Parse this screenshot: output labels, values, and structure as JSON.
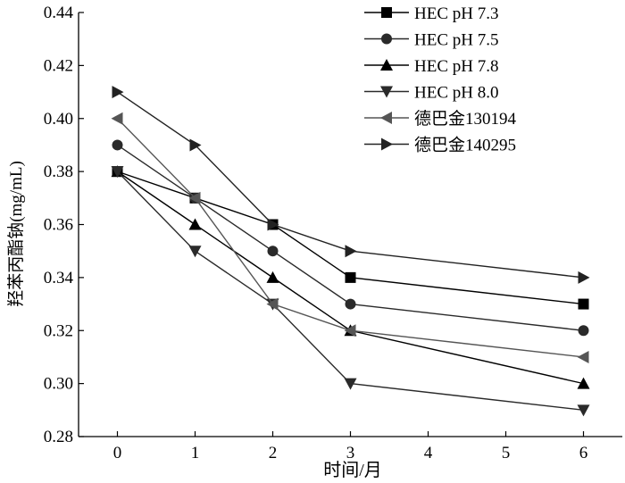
{
  "chart_data": {
    "type": "line",
    "title": "",
    "xlabel": "时间/月",
    "ylabel": "羟苯丙酯钠(mg/mL)",
    "xlim": [
      -0.5,
      6.5
    ],
    "ylim": [
      0.28,
      0.44
    ],
    "x_ticks": [
      0,
      1,
      2,
      3,
      4,
      5,
      6
    ],
    "y_ticks": [
      0.28,
      0.3,
      0.32,
      0.34,
      0.36,
      0.38,
      0.4,
      0.42,
      0.44
    ],
    "x_tick_labels": [
      "0",
      "1",
      "2",
      "3",
      "4",
      "5",
      "6"
    ],
    "y_tick_labels": [
      "0.28",
      "0.30",
      "0.32",
      "0.34",
      "0.36",
      "0.38",
      "0.40",
      "0.42",
      "0.44"
    ],
    "grid": false,
    "legend_position": "top-right",
    "x": [
      0,
      1,
      2,
      3,
      6
    ],
    "series": [
      {
        "name": "HEC pH 7.3",
        "marker": "square",
        "color": "#000000",
        "values": [
          0.38,
          0.37,
          0.36,
          0.34,
          0.33
        ]
      },
      {
        "name": "HEC pH 7.5",
        "marker": "circle",
        "color": "#2a2a2a",
        "values": [
          0.39,
          0.37,
          0.35,
          0.33,
          0.32
        ]
      },
      {
        "name": "HEC pH 7.8",
        "marker": "triangle-up",
        "color": "#000000",
        "values": [
          0.38,
          0.36,
          0.34,
          0.32,
          0.3
        ]
      },
      {
        "name": "HEC pH 8.0",
        "marker": "triangle-down",
        "color": "#2a2a2a",
        "values": [
          0.38,
          0.35,
          0.33,
          0.3,
          0.29
        ]
      },
      {
        "name": "德巴金130194",
        "marker": "triangle-left",
        "color": "#555555",
        "values": [
          0.4,
          0.37,
          0.33,
          0.32,
          0.31
        ]
      },
      {
        "name": "德巴金140295",
        "marker": "triangle-right",
        "color": "#222222",
        "values": [
          0.41,
          0.39,
          0.36,
          0.35,
          0.34
        ]
      }
    ]
  }
}
